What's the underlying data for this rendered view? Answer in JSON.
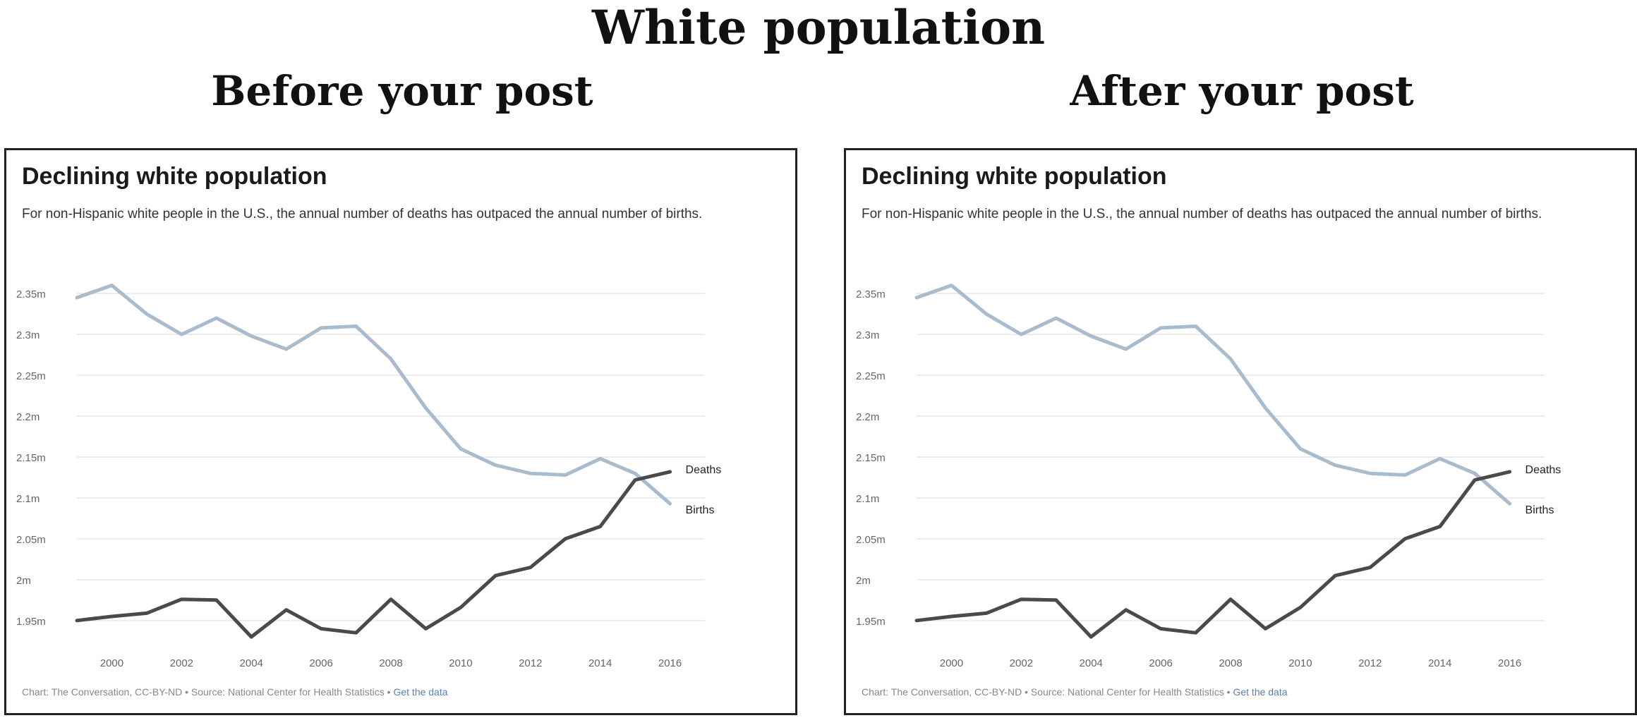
{
  "header": {
    "title": "White population",
    "left_caption": "Before your post",
    "right_caption": "After your post"
  },
  "panels": [
    {
      "title": "Declining white population",
      "subtitle": "For non-Hispanic white people in the U.S., the annual number of deaths has outpaced the annual number of births.",
      "footer": "Chart: The Conversation, CC-BY-ND • Source: National Center for Health Statistics •",
      "footer_link": "Get the data"
    },
    {
      "title": "Declining white population",
      "subtitle": "For non-Hispanic white people in the U.S., the annual number of deaths has outpaced the annual number of births.",
      "footer": "Chart: The Conversation, CC-BY-ND • Source: National Center for Health Statistics •",
      "footer_link": "Get the data"
    }
  ],
  "colors": {
    "births": "#a9bccd",
    "deaths": "#4a4a4a",
    "grid": "#e6e6e6",
    "tick": "#666666"
  },
  "chart_data": [
    {
      "type": "line",
      "ylim": [
        1.93,
        2.37
      ],
      "xlim": [
        1999,
        2017
      ],
      "y_ticks": [
        1.95,
        2.0,
        2.05,
        2.1,
        2.15,
        2.2,
        2.25,
        2.3,
        2.35
      ],
      "y_tick_labels": [
        "1.95m",
        "2m",
        "2.05m",
        "2.1m",
        "2.15m",
        "2.2m",
        "2.25m",
        "2.3m",
        "2.35m"
      ],
      "x_ticks": [
        2000,
        2002,
        2004,
        2006,
        2008,
        2010,
        2012,
        2014,
        2016
      ],
      "x_tick_labels": [
        "2000",
        "2002",
        "2004",
        "2006",
        "2008",
        "2010",
        "2012",
        "2014",
        "2016"
      ],
      "grid": true,
      "x": [
        1999,
        2000,
        2001,
        2002,
        2003,
        2004,
        2005,
        2006,
        2007,
        2008,
        2009,
        2010,
        2011,
        2012,
        2013,
        2014,
        2015,
        2016
      ],
      "series": [
        {
          "name": "Births",
          "values": [
            2.345,
            2.36,
            2.325,
            2.3,
            2.32,
            2.298,
            2.282,
            2.308,
            2.31,
            2.27,
            2.21,
            2.16,
            2.14,
            2.13,
            2.128,
            2.148,
            2.13,
            2.093
          ]
        },
        {
          "name": "Deaths",
          "values": [
            1.95,
            1.955,
            1.959,
            1.976,
            1.975,
            1.93,
            1.963,
            1.94,
            1.935,
            1.976,
            1.94,
            1.966,
            2.005,
            2.015,
            2.05,
            2.065,
            2.122,
            2.132
          ]
        }
      ]
    },
    {
      "type": "line",
      "ylim": [
        1.93,
        2.37
      ],
      "xlim": [
        1999,
        2017
      ],
      "y_ticks": [
        1.95,
        2.0,
        2.05,
        2.1,
        2.15,
        2.2,
        2.25,
        2.3,
        2.35
      ],
      "y_tick_labels": [
        "1.95m",
        "2m",
        "2.05m",
        "2.1m",
        "2.15m",
        "2.2m",
        "2.25m",
        "2.3m",
        "2.35m"
      ],
      "x_ticks": [
        2000,
        2002,
        2004,
        2006,
        2008,
        2010,
        2012,
        2014,
        2016
      ],
      "x_tick_labels": [
        "2000",
        "2002",
        "2004",
        "2006",
        "2008",
        "2010",
        "2012",
        "2014",
        "2016"
      ],
      "grid": true,
      "x": [
        1999,
        2000,
        2001,
        2002,
        2003,
        2004,
        2005,
        2006,
        2007,
        2008,
        2009,
        2010,
        2011,
        2012,
        2013,
        2014,
        2015,
        2016
      ],
      "series": [
        {
          "name": "Births",
          "values": [
            2.345,
            2.36,
            2.325,
            2.3,
            2.32,
            2.298,
            2.282,
            2.308,
            2.31,
            2.27,
            2.21,
            2.16,
            2.14,
            2.13,
            2.128,
            2.148,
            2.13,
            2.093
          ]
        },
        {
          "name": "Deaths",
          "values": [
            1.95,
            1.955,
            1.959,
            1.976,
            1.975,
            1.93,
            1.963,
            1.94,
            1.935,
            1.976,
            1.94,
            1.966,
            2.005,
            2.015,
            2.05,
            2.065,
            2.122,
            2.132
          ]
        }
      ]
    }
  ]
}
